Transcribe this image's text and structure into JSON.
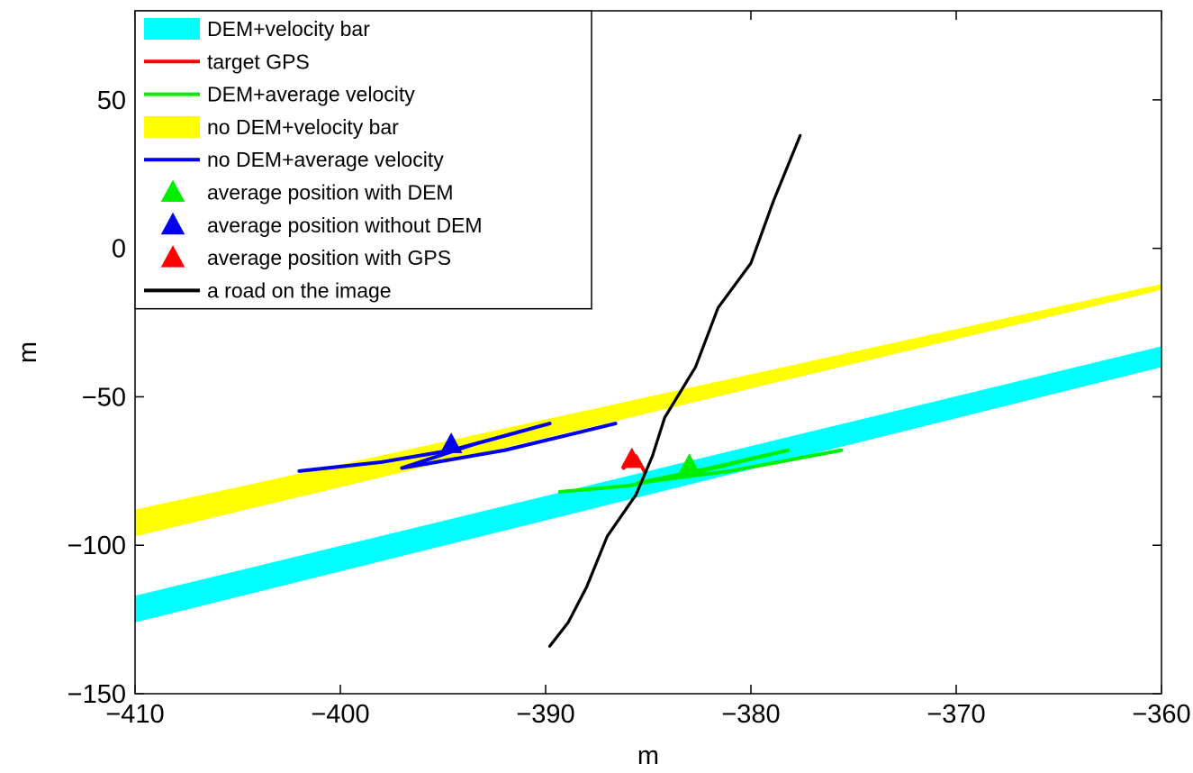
{
  "chart_data": {
    "type": "line",
    "title": "",
    "xlabel": "m",
    "ylabel": "m",
    "xlim": [
      -410,
      -360
    ],
    "ylim": [
      -150,
      80
    ],
    "xticks": [
      -410,
      -400,
      -390,
      -380,
      -370,
      -360
    ],
    "yticks": [
      -150,
      -100,
      -50,
      0,
      50
    ],
    "xtick_labels": [
      "−410",
      "−400",
      "−390",
      "−380",
      "−370",
      "−360"
    ],
    "ytick_labels": [
      "−150",
      "−100",
      "−50",
      "0",
      "50"
    ],
    "grid": false,
    "legend_position": "top-left",
    "series": [
      {
        "name": "DEM+velocity bar",
        "kind": "band",
        "color": "#00ffff",
        "upper": [
          [
            -410,
            -117
          ],
          [
            -360,
            -33
          ]
        ],
        "lower": [
          [
            -410,
            -126
          ],
          [
            -360,
            -40
          ]
        ]
      },
      {
        "name": "target GPS",
        "kind": "line",
        "color": "#ff0000",
        "points": [
          [
            -386.2,
            -74
          ],
          [
            -385.6,
            -70
          ],
          [
            -385.2,
            -75
          ]
        ]
      },
      {
        "name": "DEM+average velocity",
        "kind": "line",
        "color": "#00ee00",
        "points": [
          [
            -389.3,
            -82
          ],
          [
            -386,
            -80
          ],
          [
            -383,
            -76
          ],
          [
            -378.2,
            -68
          ],
          [
            -382,
            -74
          ],
          [
            -385.5,
            -79
          ],
          [
            -381,
            -75
          ],
          [
            -375.6,
            -68
          ]
        ]
      },
      {
        "name": "no DEM+velocity bar",
        "kind": "band",
        "color": "#ffff00",
        "upper": [
          [
            -410,
            -88
          ],
          [
            -360,
            -12
          ]
        ],
        "lower": [
          [
            -410,
            -97
          ],
          [
            -360,
            -14
          ]
        ]
      },
      {
        "name": "no DEM+average velocity",
        "kind": "line",
        "color": "#0000ee",
        "points": [
          [
            -402,
            -75
          ],
          [
            -398,
            -72
          ],
          [
            -394.6,
            -68
          ],
          [
            -389.8,
            -59
          ],
          [
            -393.5,
            -66
          ],
          [
            -397,
            -74
          ],
          [
            -392,
            -68
          ],
          [
            -386.6,
            -59
          ]
        ]
      },
      {
        "name": "average position with DEM",
        "kind": "marker",
        "color": "#00ee00",
        "points": [
          [
            -383,
            -73
          ]
        ]
      },
      {
        "name": "average position without DEM",
        "kind": "marker",
        "color": "#0000ee",
        "points": [
          [
            -394.6,
            -66
          ]
        ]
      },
      {
        "name": "average position with GPS",
        "kind": "marker",
        "color": "#ff0000",
        "points": [
          [
            -385.8,
            -71
          ]
        ]
      },
      {
        "name": "a road on the image",
        "kind": "line",
        "color": "#000000",
        "points": [
          [
            -389.8,
            -134
          ],
          [
            -388.9,
            -126
          ],
          [
            -388,
            -114
          ],
          [
            -387,
            -97
          ],
          [
            -385.6,
            -83
          ],
          [
            -384.8,
            -70
          ],
          [
            -384.2,
            -57
          ],
          [
            -382.7,
            -40
          ],
          [
            -381.6,
            -20
          ],
          [
            -380,
            -5
          ],
          [
            -378.9,
            16
          ],
          [
            -377.6,
            38
          ]
        ]
      }
    ]
  }
}
